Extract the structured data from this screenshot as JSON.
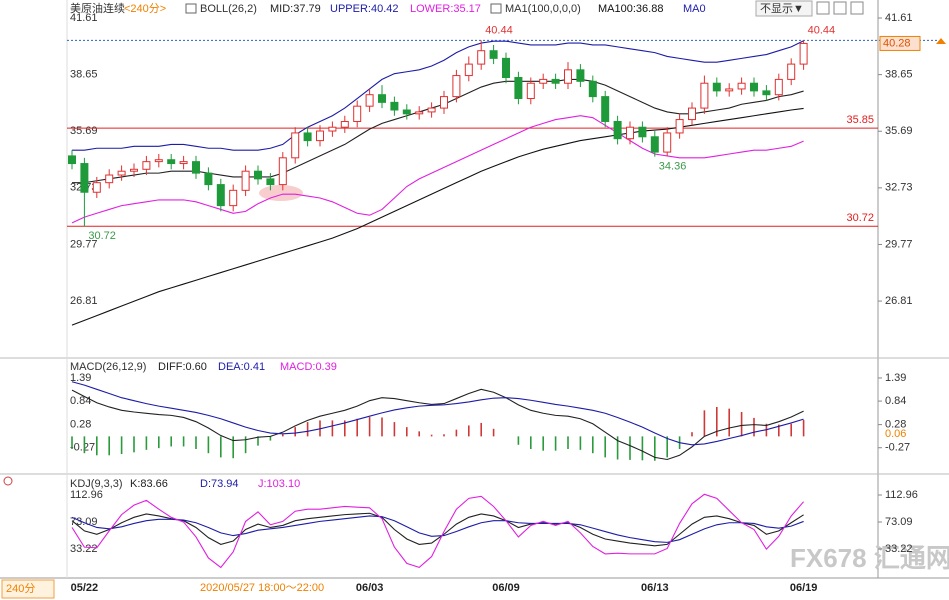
{
  "header": {
    "instrument": "美原油连续",
    "period": "<240分>",
    "hide_button": "不显示▼"
  },
  "footer": {
    "period": "240分",
    "cursor_time": "2020/05/27 18:00～22:00",
    "watermark": "FX678 汇通网"
  },
  "chart_data": [
    {
      "type": "candlestick",
      "title": "BOLL(26,2)",
      "ma_title": "MA1(100,0,0,0)",
      "ma_zero_label": "MA0",
      "categories": [
        null,
        "05/22",
        null,
        null,
        null,
        null,
        null,
        null,
        null,
        null,
        null,
        null,
        null,
        null,
        null,
        null,
        null,
        null,
        null,
        null,
        null,
        null,
        null,
        null,
        "06/03",
        null,
        null,
        null,
        null,
        null,
        null,
        null,
        null,
        null,
        null,
        "06/09",
        null,
        null,
        null,
        null,
        null,
        null,
        null,
        null,
        null,
        null,
        null,
        "06/13",
        null,
        null,
        null,
        null,
        null,
        null,
        null,
        null,
        null,
        null,
        null,
        "06/19"
      ],
      "open": [
        34.4,
        34.0,
        32.5,
        33.0,
        33.4,
        33.6,
        33.7,
        34.1,
        34.2,
        34.0,
        34.1,
        33.5,
        32.9,
        31.8,
        32.6,
        33.6,
        33.2,
        32.9,
        34.3,
        35.6,
        35.2,
        35.7,
        35.9,
        36.2,
        37.0,
        37.6,
        37.2,
        36.8,
        36.6,
        36.7,
        36.9,
        37.5,
        38.6,
        39.2,
        39.9,
        39.5,
        38.5,
        37.4,
        38.2,
        38.4,
        38.2,
        38.9,
        38.3,
        37.5,
        36.2,
        35.3,
        35.9,
        35.4,
        34.6,
        35.6,
        36.3,
        36.9,
        38.2,
        37.8,
        37.9,
        38.2,
        37.8,
        37.6,
        38.4,
        39.2
      ],
      "high": [
        34.7,
        34.3,
        33.3,
        33.7,
        33.9,
        34.0,
        34.4,
        34.5,
        34.5,
        34.4,
        34.4,
        33.8,
        33.2,
        32.9,
        33.9,
        33.9,
        33.5,
        34.6,
        35.9,
        35.9,
        36.0,
        36.2,
        36.5,
        37.3,
        37.9,
        38.1,
        37.5,
        37.1,
        37.0,
        37.2,
        37.8,
        38.9,
        39.6,
        40.44,
        40.2,
        39.8,
        38.8,
        38.5,
        38.7,
        38.7,
        39.3,
        39.2,
        38.6,
        37.8,
        36.5,
        36.2,
        36.2,
        35.7,
        35.9,
        36.6,
        37.2,
        38.6,
        38.5,
        38.2,
        38.5,
        38.5,
        38.1,
        38.7,
        39.5,
        40.44
      ],
      "low": [
        33.7,
        30.72,
        32.2,
        32.7,
        33.1,
        33.3,
        33.4,
        33.8,
        33.7,
        33.7,
        33.2,
        32.6,
        31.5,
        31.5,
        32.3,
        32.9,
        32.6,
        32.6,
        34.0,
        34.9,
        34.9,
        35.4,
        35.6,
        35.9,
        36.7,
        36.9,
        36.5,
        36.3,
        36.3,
        36.4,
        36.6,
        37.2,
        38.3,
        38.9,
        39.2,
        38.2,
        37.1,
        37.1,
        37.9,
        37.9,
        37.9,
        38.0,
        37.2,
        35.9,
        35.0,
        35.0,
        35.1,
        34.36,
        34.4,
        35.3,
        36.0,
        36.6,
        37.5,
        37.5,
        37.6,
        37.5,
        37.3,
        37.3,
        38.1,
        38.9
      ],
      "close": [
        34.0,
        32.5,
        33.0,
        33.4,
        33.6,
        33.7,
        34.1,
        34.2,
        34.0,
        34.1,
        33.5,
        32.9,
        31.8,
        32.6,
        33.6,
        33.2,
        32.9,
        34.3,
        35.6,
        35.2,
        35.7,
        35.9,
        36.2,
        37.0,
        37.6,
        37.2,
        36.8,
        36.6,
        36.7,
        36.9,
        37.5,
        38.6,
        39.2,
        39.9,
        39.5,
        38.5,
        37.4,
        38.2,
        38.4,
        38.2,
        38.9,
        38.3,
        37.5,
        36.2,
        35.3,
        35.9,
        35.4,
        34.6,
        35.6,
        36.3,
        36.9,
        38.2,
        37.8,
        37.9,
        38.2,
        37.8,
        37.6,
        38.4,
        39.2,
        40.28
      ],
      "up_color": "#e03030",
      "down_color": "#1e9a3a",
      "series": [
        {
          "name": "MID:37.79",
          "color": "#222222",
          "values": [
            33.0,
            33.0,
            33.1,
            33.2,
            33.3,
            33.4,
            33.5,
            33.5,
            33.6,
            33.6,
            33.6,
            33.5,
            33.4,
            33.3,
            33.3,
            33.3,
            33.3,
            33.5,
            33.8,
            34.1,
            34.4,
            34.7,
            35.0,
            35.4,
            35.8,
            36.1,
            36.3,
            36.5,
            36.7,
            36.9,
            37.1,
            37.4,
            37.7,
            38.0,
            38.2,
            38.3,
            38.3,
            38.3,
            38.3,
            38.3,
            38.4,
            38.4,
            38.3,
            38.1,
            37.8,
            37.5,
            37.2,
            36.9,
            36.7,
            36.6,
            36.6,
            36.7,
            36.8,
            36.9,
            37.1,
            37.2,
            37.3,
            37.5,
            37.6,
            37.79
          ]
        },
        {
          "name": "UPPER:40.42",
          "color": "#1c1ca8",
          "values": [
            34.7,
            34.7,
            34.8,
            34.8,
            34.8,
            34.9,
            34.9,
            34.9,
            35.0,
            35.0,
            34.9,
            34.8,
            34.8,
            34.7,
            34.7,
            34.7,
            34.8,
            35.0,
            35.5,
            35.9,
            36.2,
            36.5,
            36.9,
            37.4,
            37.9,
            38.4,
            38.7,
            38.8,
            38.9,
            39.1,
            39.4,
            39.8,
            40.1,
            40.3,
            40.4,
            40.4,
            40.3,
            40.2,
            40.2,
            40.2,
            40.3,
            40.3,
            40.2,
            40.2,
            40.1,
            40.0,
            39.9,
            39.8,
            39.6,
            39.5,
            39.4,
            39.3,
            39.3,
            39.4,
            39.5,
            39.6,
            39.7,
            39.9,
            40.1,
            40.42
          ]
        },
        {
          "name": "LOWER:35.17",
          "color": "#e020e0",
          "values": [
            30.9,
            31.2,
            31.4,
            31.6,
            31.8,
            31.9,
            32.0,
            32.1,
            32.1,
            32.1,
            32.0,
            31.8,
            31.6,
            31.4,
            31.5,
            31.9,
            32.2,
            32.4,
            32.4,
            32.3,
            32.2,
            32.0,
            31.7,
            31.4,
            31.3,
            31.6,
            32.2,
            32.8,
            33.2,
            33.5,
            33.8,
            34.1,
            34.4,
            34.7,
            35.0,
            35.3,
            35.6,
            35.9,
            36.1,
            36.3,
            36.4,
            36.5,
            36.4,
            36.0,
            35.6,
            35.2,
            34.8,
            34.5,
            34.4,
            34.3,
            34.3,
            34.3,
            34.4,
            34.5,
            34.6,
            34.7,
            34.7,
            34.8,
            34.9,
            35.17
          ]
        },
        {
          "name": "MA100:36.88",
          "color": "#111111",
          "values": [
            25.55,
            25.8,
            26.05,
            26.3,
            26.55,
            26.8,
            27.05,
            27.3,
            27.5,
            27.7,
            27.9,
            28.1,
            28.3,
            28.5,
            28.7,
            28.9,
            29.1,
            29.3,
            29.5,
            29.7,
            29.9,
            30.1,
            30.35,
            30.6,
            30.9,
            31.2,
            31.5,
            31.8,
            32.1,
            32.4,
            32.7,
            33.0,
            33.3,
            33.6,
            33.85,
            34.1,
            34.35,
            34.55,
            34.75,
            34.9,
            35.05,
            35.2,
            35.3,
            35.4,
            35.5,
            35.6,
            35.7,
            35.75,
            35.8,
            35.9,
            36.0,
            36.1,
            36.2,
            36.3,
            36.4,
            36.5,
            36.6,
            36.7,
            36.8,
            36.88
          ]
        }
      ],
      "hlines": [
        35.85,
        30.72
      ],
      "hline_color": "#e02020",
      "ylim": [
        23.99,
        42.29
      ],
      "yticks": [
        41.61,
        38.65,
        35.69,
        32.73,
        29.77,
        26.81
      ]
    },
    {
      "type": "macd",
      "title": "MACD(26,12,9)",
      "series": [
        {
          "name": "DIFF:0.60",
          "color": "#222222",
          "values": [
            1.1,
            0.95,
            0.8,
            0.7,
            0.62,
            0.58,
            0.55,
            0.52,
            0.5,
            0.45,
            0.35,
            0.2,
            0.02,
            -0.1,
            -0.08,
            -0.02,
            0.0,
            0.1,
            0.25,
            0.38,
            0.48,
            0.55,
            0.62,
            0.72,
            0.85,
            0.92,
            0.9,
            0.85,
            0.8,
            0.76,
            0.78,
            0.9,
            1.02,
            1.12,
            1.05,
            0.92,
            0.75,
            0.62,
            0.55,
            0.5,
            0.48,
            0.42,
            0.3,
            0.1,
            -0.1,
            -0.22,
            -0.35,
            -0.5,
            -0.55,
            -0.45,
            -0.25,
            0.0,
            0.12,
            0.2,
            0.26,
            0.28,
            0.26,
            0.35,
            0.46,
            0.6
          ]
        },
        {
          "name": "DEA:0.41",
          "color": "#1c1ca8",
          "values": [
            1.3,
            1.22,
            1.12,
            1.02,
            0.92,
            0.85,
            0.78,
            0.72,
            0.67,
            0.62,
            0.57,
            0.5,
            0.42,
            0.32,
            0.22,
            0.14,
            0.08,
            0.06,
            0.08,
            0.12,
            0.18,
            0.25,
            0.32,
            0.4,
            0.48,
            0.56,
            0.63,
            0.68,
            0.72,
            0.74,
            0.75,
            0.78,
            0.82,
            0.87,
            0.91,
            0.92,
            0.9,
            0.86,
            0.81,
            0.76,
            0.72,
            0.67,
            0.62,
            0.55,
            0.45,
            0.34,
            0.22,
            0.08,
            -0.05,
            -0.15,
            -0.2,
            -0.18,
            -0.12,
            -0.05,
            0.02,
            0.1,
            0.16,
            0.24,
            0.32,
            0.41
          ]
        }
      ],
      "histogram": {
        "name": "MACD:0.39",
        "color": "#e020e0",
        "up_color": "#d03838",
        "down_color": "#2a9a3a",
        "values": [
          -0.3,
          -0.4,
          -0.45,
          -0.45,
          -0.42,
          -0.38,
          -0.32,
          -0.28,
          -0.24,
          -0.24,
          -0.3,
          -0.4,
          -0.5,
          -0.52,
          -0.4,
          -0.22,
          -0.1,
          0.05,
          0.22,
          0.34,
          0.38,
          0.38,
          0.38,
          0.42,
          0.46,
          0.45,
          0.34,
          0.22,
          0.12,
          0.04,
          0.05,
          0.16,
          0.26,
          0.32,
          0.18,
          0.0,
          -0.2,
          -0.3,
          -0.34,
          -0.34,
          -0.3,
          -0.32,
          -0.4,
          -0.5,
          -0.55,
          -0.56,
          -0.57,
          -0.58,
          -0.5,
          -0.3,
          0.1,
          0.62,
          0.7,
          0.66,
          0.58,
          0.44,
          0.3,
          0.28,
          0.3,
          0.39
        ]
      },
      "marker": 0.06,
      "marker_color": "#f08000",
      "ylim": [
        -0.8,
        1.77
      ],
      "yticks": [
        1.39,
        0.84,
        0.28,
        -0.27
      ]
    },
    {
      "type": "kdj",
      "title": "KDJ(9,3,3)",
      "series": [
        {
          "name": "K:83.66",
          "color": "#222222",
          "values": [
            75,
            60,
            55,
            62,
            72,
            80,
            85,
            82,
            78,
            75,
            65,
            50,
            40,
            45,
            62,
            70,
            65,
            68,
            75,
            78,
            80,
            82,
            84,
            85,
            86,
            80,
            62,
            48,
            40,
            42,
            55,
            70,
            80,
            85,
            82,
            75,
            65,
            70,
            72,
            70,
            72,
            65,
            55,
            48,
            45,
            42,
            40,
            38,
            40,
            55,
            70,
            80,
            82,
            78,
            72,
            68,
            55,
            60,
            72,
            83.66
          ]
        },
        {
          "name": "D:73.94",
          "color": "#1c1ca8",
          "values": [
            80,
            72,
            65,
            63,
            66,
            71,
            75,
            77,
            77,
            76,
            72,
            65,
            57,
            53,
            56,
            61,
            63,
            65,
            68,
            71,
            74,
            76,
            78,
            80,
            82,
            81,
            75,
            66,
            57,
            52,
            53,
            59,
            66,
            72,
            75,
            75,
            72,
            71,
            71,
            71,
            71,
            69,
            64,
            59,
            54,
            50,
            47,
            44,
            43,
            47,
            55,
            63,
            69,
            72,
            72,
            71,
            66,
            64,
            67,
            73.94
          ]
        },
        {
          "name": "J:103.10",
          "color": "#e020e0",
          "values": [
            65,
            36,
            35,
            60,
            84,
            98,
            105,
            92,
            80,
            73,
            51,
            20,
            6,
            29,
            74,
            88,
            69,
            74,
            89,
            92,
            92,
            94,
            96,
            95,
            94,
            78,
            36,
            12,
            6,
            22,
            59,
            92,
            108,
            111,
            96,
            75,
            51,
            68,
            74,
            68,
            74,
            57,
            37,
            26,
            27,
            26,
            26,
            26,
            34,
            71,
            100,
            114,
            108,
            90,
            72,
            62,
            33,
            52,
            82,
            103.1
          ]
        }
      ],
      "ylim": [
        -5.18,
        138.07
      ],
      "yticks": [
        112.96,
        73.09,
        33.22
      ]
    }
  ]
}
